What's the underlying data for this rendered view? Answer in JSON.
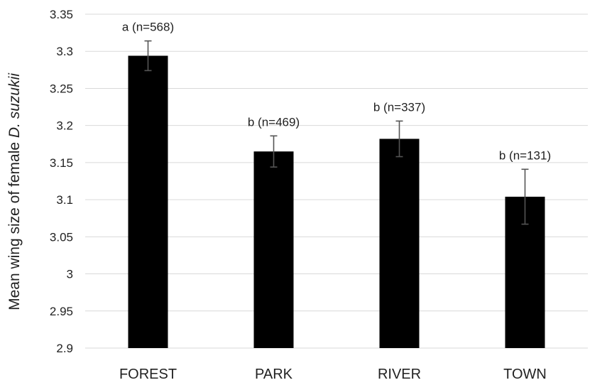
{
  "chart_data": {
    "type": "bar",
    "title": "",
    "xlabel": "",
    "ylabel": "Mean wing size of female D. suzukii",
    "ylabel_parts": {
      "prefix": "Mean wing size of female ",
      "italic": "D. suzukii"
    },
    "categories": [
      "FOREST",
      "PARK",
      "RIVER",
      "TOWN"
    ],
    "values": [
      3.294,
      3.165,
      3.182,
      3.104
    ],
    "error": [
      0.02,
      0.021,
      0.024,
      0.037
    ],
    "data_labels": [
      "a (n=568)",
      "b  (n=469)",
      "b  (n=337)",
      "b  (n=131)"
    ],
    "ylim": [
      2.9,
      3.35
    ],
    "yticks": [
      2.9,
      2.95,
      3,
      3.05,
      3.1,
      3.15,
      3.2,
      3.25,
      3.3,
      3.35
    ],
    "ytick_labels": [
      "2.9",
      "2.95",
      "3",
      "3.05",
      "3.1",
      "3.15",
      "3.2",
      "3.25",
      "3.3",
      "3.35"
    ],
    "grid": true,
    "bar_color": "#000000",
    "grid_color": "#d9d9d9"
  }
}
